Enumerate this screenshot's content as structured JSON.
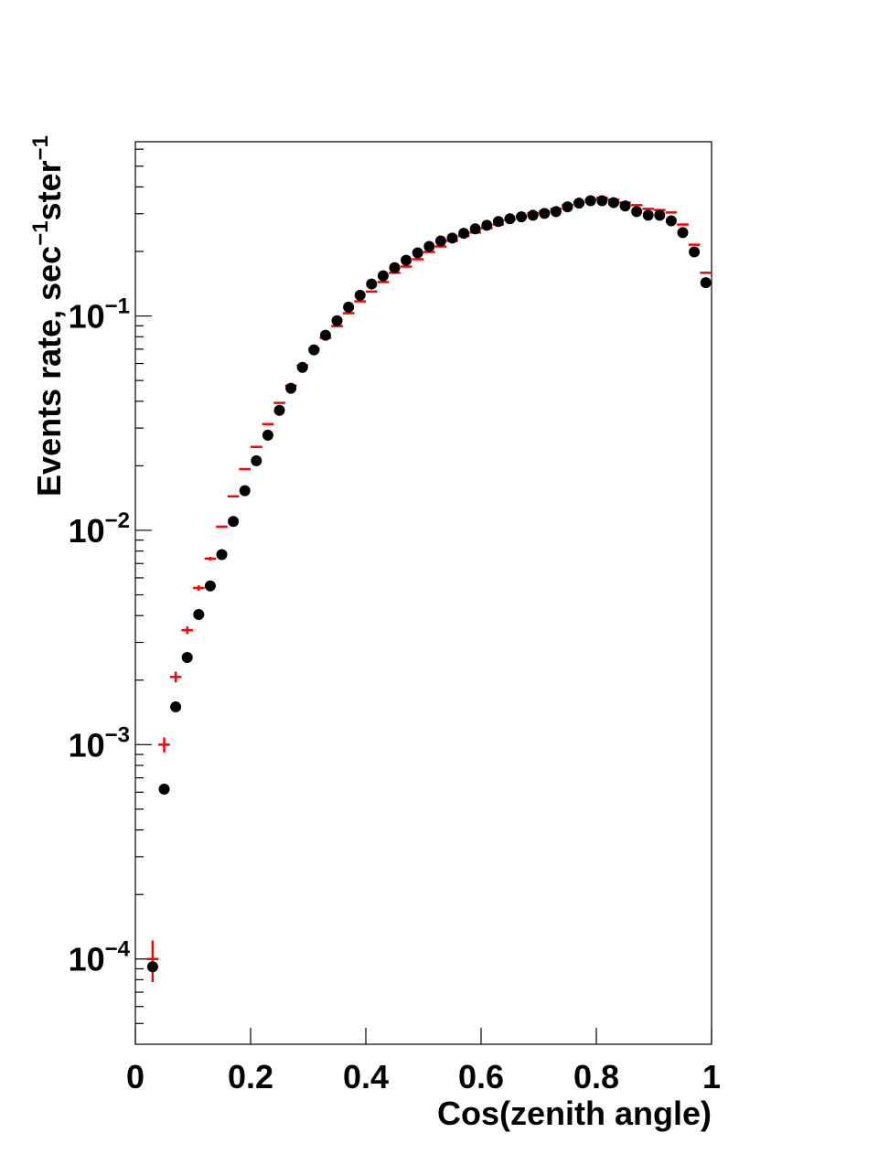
{
  "chart_data": {
    "type": "scatter",
    "x_label": "Cos(zenith angle)",
    "y_label_parts": [
      "Events rate, sec",
      "−1",
      "ster",
      "−1"
    ],
    "log_y": true,
    "xlim": [
      0,
      1
    ],
    "xticks": [
      0,
      0.2,
      0.4,
      0.6,
      0.8,
      1
    ],
    "ylim": [
      4e-05,
      0.65
    ],
    "yticks": [
      {
        "value": 0.0001,
        "label": "10",
        "exponent": "−4"
      },
      {
        "value": 0.001,
        "label": "10",
        "exponent": "−3"
      },
      {
        "value": 0.01,
        "label": "10",
        "exponent": "−2"
      },
      {
        "value": 0.1,
        "label": "10",
        "exponent": "−1"
      }
    ],
    "yminorticks": [
      5e-05,
      6e-05,
      7e-05,
      8e-05,
      9e-05,
      0.0002,
      0.0003,
      0.0004,
      0.0005,
      0.0006,
      0.0007,
      0.0008,
      0.0009,
      0.002,
      0.003,
      0.004,
      0.005,
      0.006,
      0.007,
      0.008,
      0.009,
      0.02,
      0.03,
      0.04,
      0.05,
      0.06,
      0.07,
      0.08,
      0.09,
      0.2,
      0.3,
      0.4,
      0.5,
      0.6
    ],
    "x": [
      0.03,
      0.05,
      0.07,
      0.09,
      0.11,
      0.13,
      0.15,
      0.17,
      0.19,
      0.21,
      0.23,
      0.25,
      0.27,
      0.29,
      0.31,
      0.33,
      0.35,
      0.37,
      0.39,
      0.41,
      0.43,
      0.45,
      0.47,
      0.49,
      0.51,
      0.53,
      0.55,
      0.57,
      0.59,
      0.61,
      0.63,
      0.65,
      0.67,
      0.69,
      0.71,
      0.73,
      0.75,
      0.77,
      0.79,
      0.81,
      0.83,
      0.85,
      0.87,
      0.89,
      0.91,
      0.93,
      0.95,
      0.97,
      0.99
    ],
    "bin_width": 0.02,
    "series": [
      {
        "color": "#000000",
        "marker": "circle",
        "values": [
          9.2e-05,
          0.00062,
          0.0015,
          0.00255,
          0.00405,
          0.0055,
          0.0077,
          0.011,
          0.0153,
          0.0211,
          0.0278,
          0.0363,
          0.046,
          0.0576,
          0.0695,
          0.0813,
          0.095,
          0.11,
          0.125,
          0.141,
          0.154,
          0.168,
          0.182,
          0.197,
          0.211,
          0.224,
          0.231,
          0.243,
          0.255,
          0.265,
          0.276,
          0.284,
          0.29,
          0.295,
          0.301,
          0.307,
          0.323,
          0.336,
          0.345,
          0.345,
          0.338,
          0.326,
          0.307,
          0.295,
          0.295,
          0.278,
          0.245,
          0.199,
          0.143
        ]
      },
      {
        "color": "#ff0000",
        "marker": "cross",
        "values": [
          0.0001,
          0.001,
          0.00207,
          0.00342,
          0.00538,
          0.00738,
          0.0104,
          0.0144,
          0.0193,
          0.0245,
          0.0313,
          0.0393,
          0.0473,
          0.0588,
          0.0702,
          0.0789,
          0.0897,
          0.103,
          0.117,
          0.13,
          0.144,
          0.159,
          0.17,
          0.184,
          0.199,
          0.211,
          0.224,
          0.236,
          0.245,
          0.257,
          0.267,
          0.281,
          0.292,
          0.301,
          0.307,
          0.316,
          0.329,
          0.338,
          0.349,
          0.356,
          0.349,
          0.338,
          0.329,
          0.316,
          0.312,
          0.304,
          0.267,
          0.215,
          0.159
        ],
        "errors": [
          2.2e-05,
          8e-05,
          0.00012,
          0.00014,
          0.00016,
          0.00015,
          0,
          0,
          0,
          0,
          0,
          0,
          0,
          0,
          0,
          0,
          0,
          0,
          0,
          0,
          0,
          0,
          0,
          0,
          0,
          0,
          0,
          0,
          0,
          0,
          0,
          0,
          0,
          0,
          0,
          0,
          0,
          0,
          0,
          0,
          0,
          0,
          0,
          0,
          0,
          0,
          0,
          0,
          0
        ]
      }
    ]
  }
}
